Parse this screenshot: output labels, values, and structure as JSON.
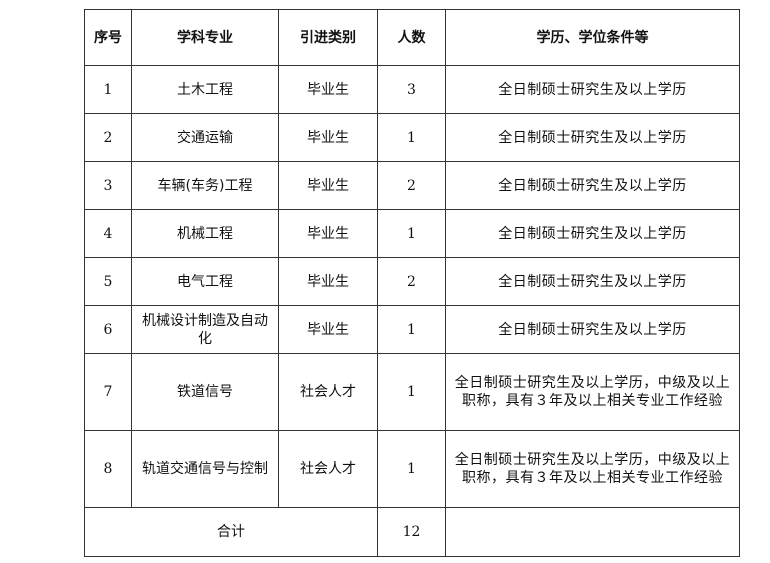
{
  "headers": [
    "序号",
    "学科专业",
    "引进类别",
    "人数",
    "学历、学位条件等"
  ],
  "rows": [
    {
      "no": "1",
      "major": "土木工程",
      "type": "毕业生",
      "count": "3",
      "req": "全日制硕士研究生及以上学历"
    },
    {
      "no": "2",
      "major": "交通运输",
      "type": "毕业生",
      "count": "1",
      "req": "全日制硕士研究生及以上学历"
    },
    {
      "no": "3",
      "major": "车辆(车务)工程",
      "type": "毕业生",
      "count": "2",
      "req": "全日制硕士研究生及以上学历"
    },
    {
      "no": "4",
      "major": "机械工程",
      "type": "毕业生",
      "count": "1",
      "req": "全日制硕士研究生及以上学历"
    },
    {
      "no": "5",
      "major": "电气工程",
      "type": "毕业生",
      "count": "2",
      "req": "全日制硕士研究生及以上学历"
    },
    {
      "no": "6",
      "major": "机械设计制造及自动化",
      "type": "毕业生",
      "count": "1",
      "req": "全日制硕士研究生及以上学历"
    },
    {
      "no": "7",
      "major": "铁道信号",
      "type": "社会人才",
      "count": "1",
      "req": "全日制硕士研究生及以上学历，中级及以上职称，具有３年及以上相关专业工作经验"
    },
    {
      "no": "8",
      "major": "轨道交通信号与控制",
      "type": "社会人才",
      "count": "1",
      "req": "全日制硕士研究生及以上学历，中级及以上职称，具有３年及以上相关专业工作经验"
    }
  ],
  "total": {
    "label": "合计",
    "count": "12"
  }
}
